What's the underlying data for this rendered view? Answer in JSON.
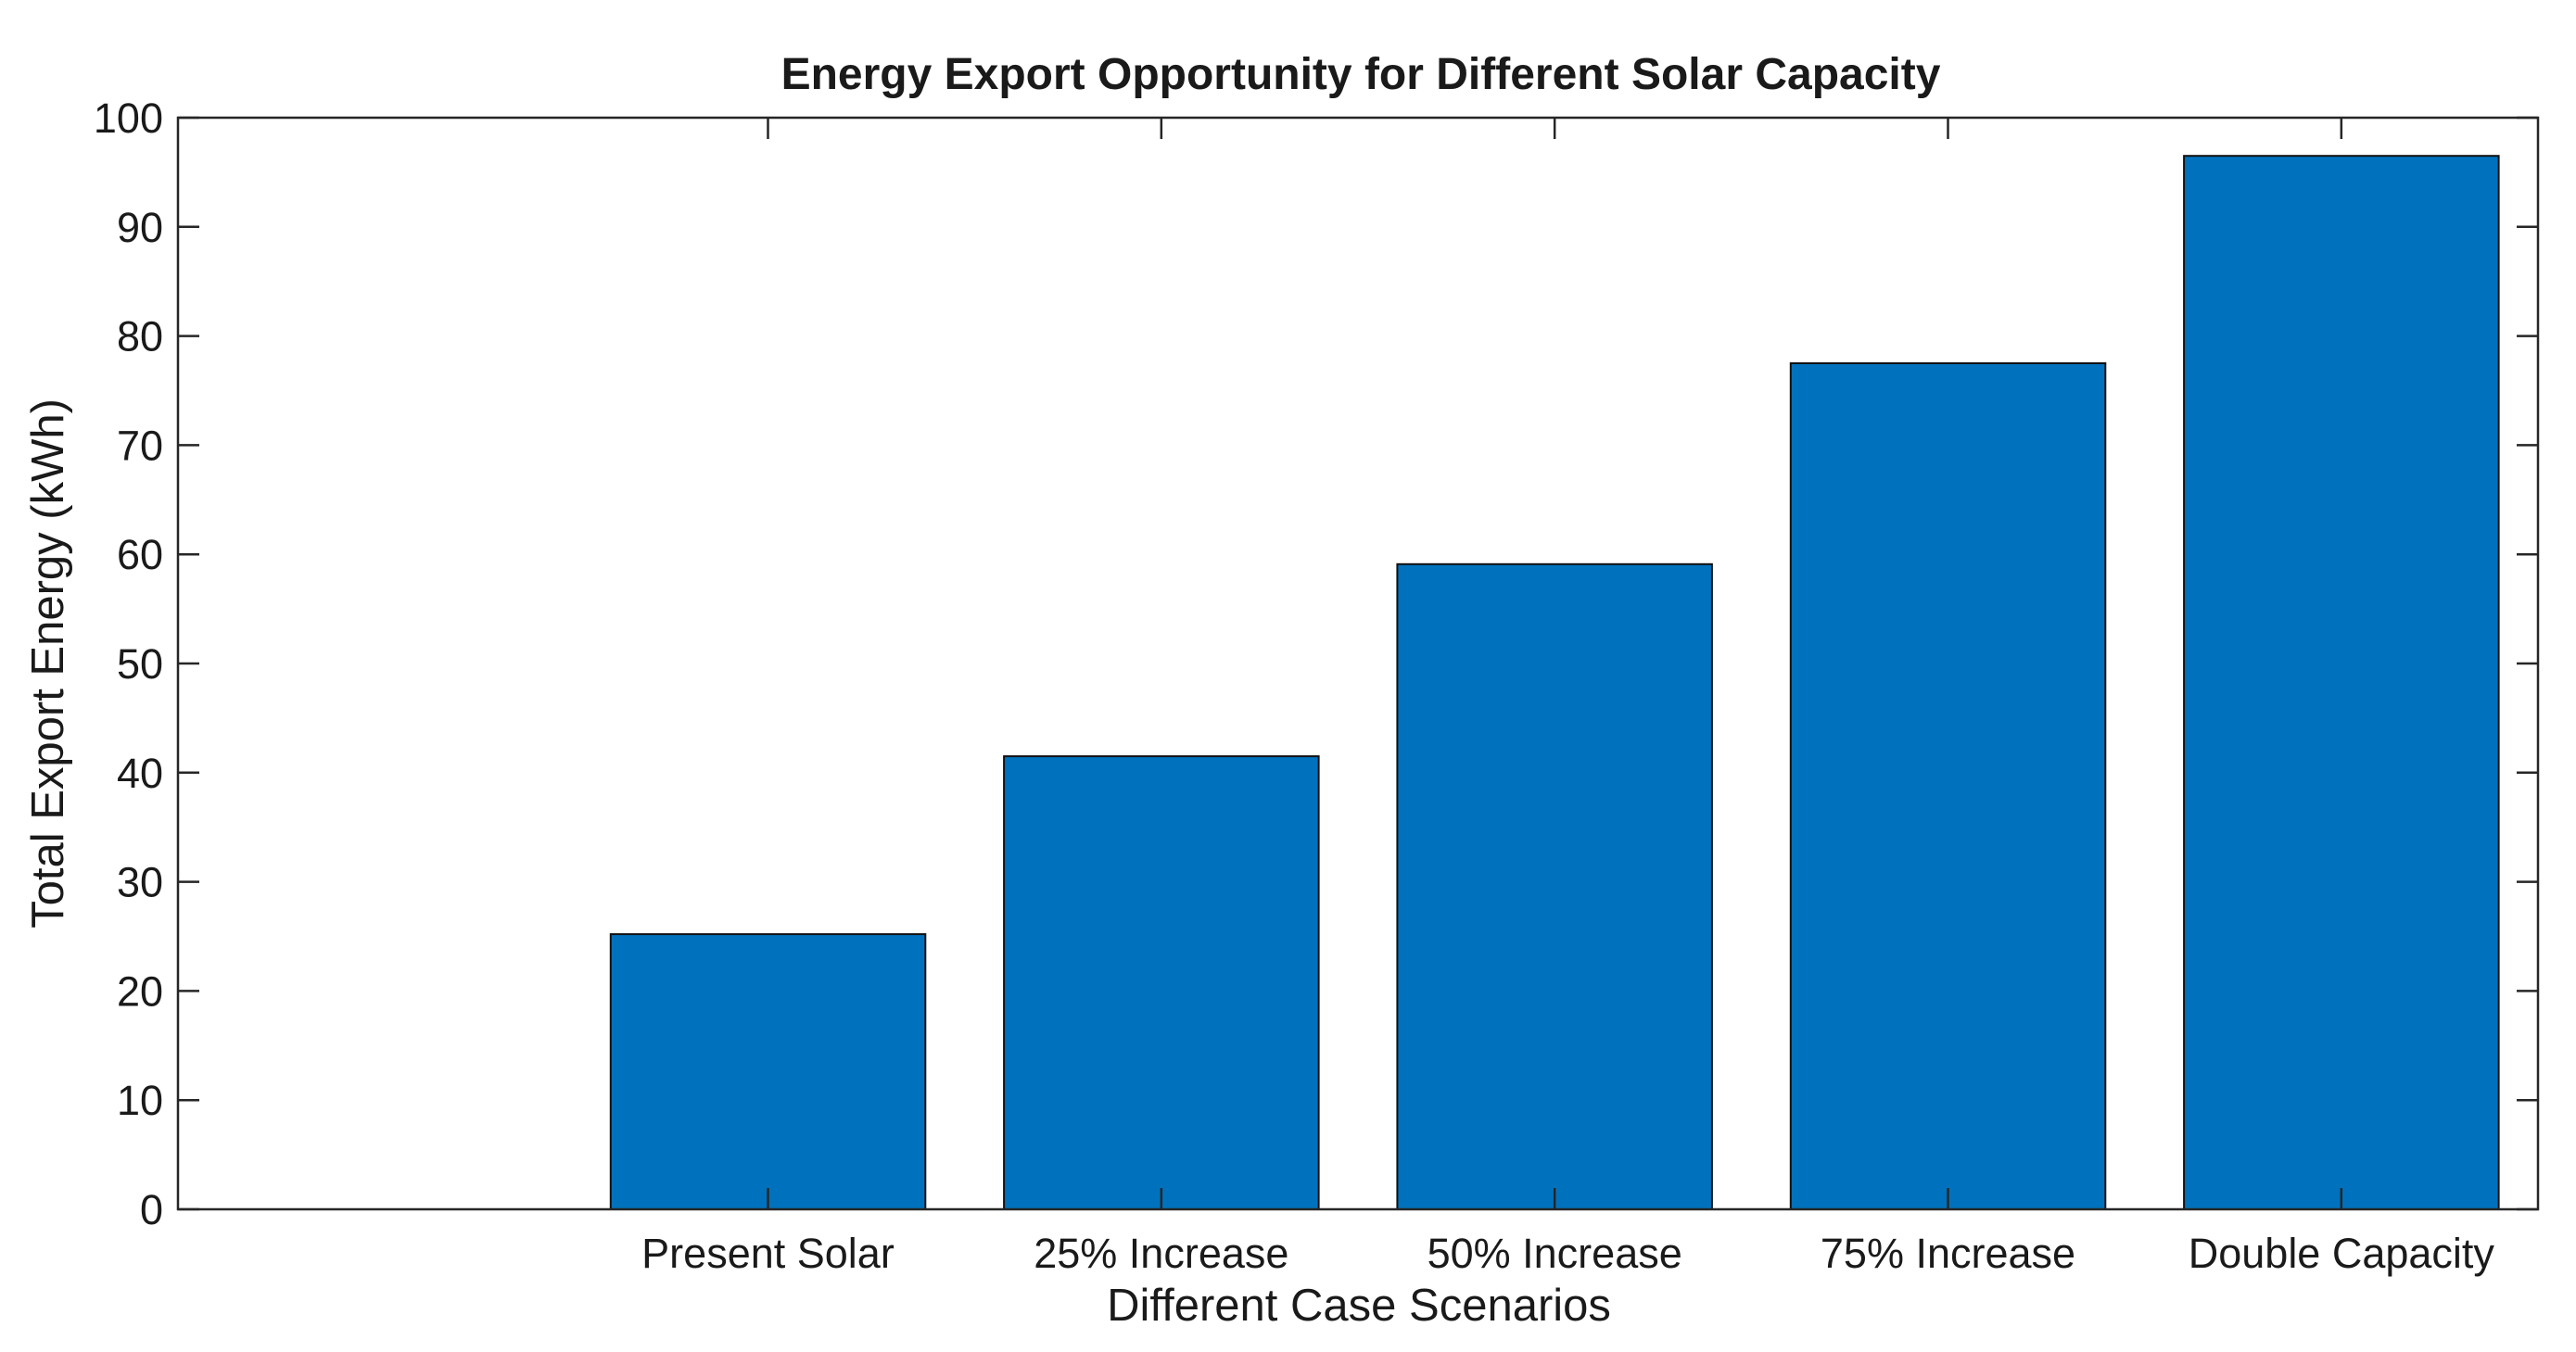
{
  "chart_data": {
    "type": "bar",
    "title": "Energy Export Opportunity for Different Solar Capacity",
    "xlabel": "Different Case Scenarios",
    "ylabel": "Total Export Energy (kWh)",
    "categories": [
      "Present Solar",
      "25% Increase",
      "50% Increase",
      "75% Increase",
      "Double Capacity"
    ],
    "values": [
      25.2,
      41.5,
      59.1,
      77.5,
      96.5
    ],
    "ylim": [
      0,
      100
    ],
    "yticks": [
      0,
      10,
      20,
      30,
      40,
      50,
      60,
      70,
      80,
      90,
      100
    ],
    "ytick_labels": [
      "0",
      "10",
      "20",
      "30",
      "40",
      "50",
      "60",
      "70",
      "80",
      "90",
      "100"
    ],
    "xlim": [
      -0.5,
      5.5
    ],
    "grid": false,
    "legend": "none",
    "bar_color": "#0072BD",
    "edge_color": "#111111"
  }
}
